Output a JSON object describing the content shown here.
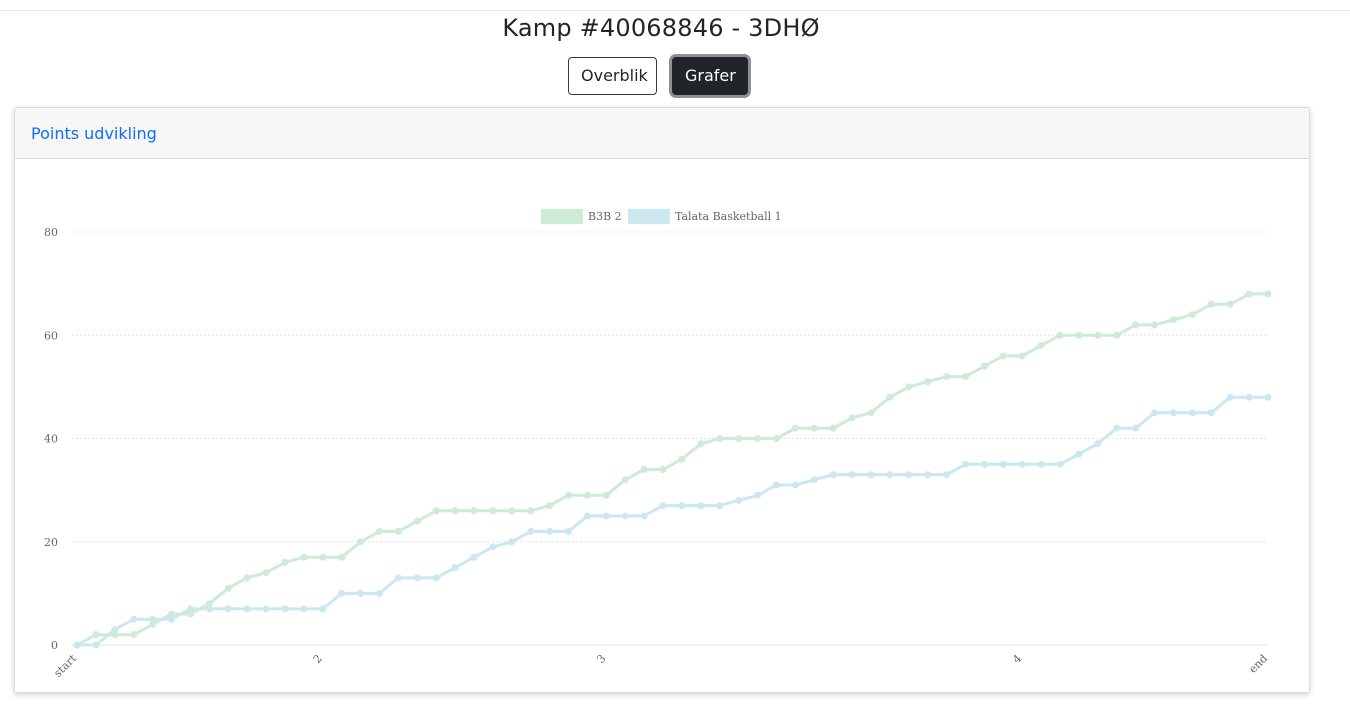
{
  "page": {
    "title": "Kamp #40068846 - 3DHØ"
  },
  "buttons": {
    "overview": "Overblik",
    "graphs": "Grafer"
  },
  "card": {
    "title": "Points udvikling"
  },
  "colors": {
    "series_b3b": "#cdebd5",
    "series_talata": "#cce8ef",
    "grid": "#e4e4e4",
    "active_button": "#212529",
    "link": "#0d6efd"
  },
  "chart_data": {
    "type": "line",
    "title": "",
    "xlabel": "",
    "ylabel": "",
    "ylim": [
      0,
      80
    ],
    "yticks": [
      0,
      20,
      40,
      60,
      80
    ],
    "grid": true,
    "legend_position": "top",
    "x_tick_labels": [
      {
        "index": 0,
        "label": "start"
      },
      {
        "index": 13,
        "label": "2"
      },
      {
        "index": 28,
        "label": "3"
      },
      {
        "index": 50,
        "label": "4"
      },
      {
        "index": 63,
        "label": "end"
      }
    ],
    "series": [
      {
        "name": "B3B 2",
        "values": [
          0,
          2,
          2,
          2,
          4,
          6,
          6,
          8,
          11,
          13,
          14,
          16,
          17,
          17,
          17,
          20,
          22,
          22,
          24,
          26,
          26,
          26,
          26,
          26,
          26,
          27,
          29,
          29,
          29,
          32,
          34,
          34,
          36,
          39,
          40,
          40,
          40,
          40,
          42,
          42,
          42,
          44,
          45,
          48,
          50,
          51,
          52,
          52,
          54,
          56,
          56,
          58,
          60,
          60,
          60,
          60,
          62,
          62,
          63,
          64,
          66,
          66,
          68,
          68
        ]
      },
      {
        "name": "Talata Basketball 1",
        "values": [
          0,
          0,
          3,
          5,
          5,
          5,
          7,
          7,
          7,
          7,
          7,
          7,
          7,
          7,
          10,
          10,
          10,
          13,
          13,
          13,
          15,
          17,
          19,
          20,
          22,
          22,
          22,
          25,
          25,
          25,
          25,
          27,
          27,
          27,
          27,
          28,
          29,
          31,
          31,
          32,
          33,
          33,
          33,
          33,
          33,
          33,
          33,
          35,
          35,
          35,
          35,
          35,
          35,
          37,
          39,
          42,
          42,
          45,
          45,
          45,
          45,
          48,
          48,
          48
        ]
      }
    ]
  }
}
